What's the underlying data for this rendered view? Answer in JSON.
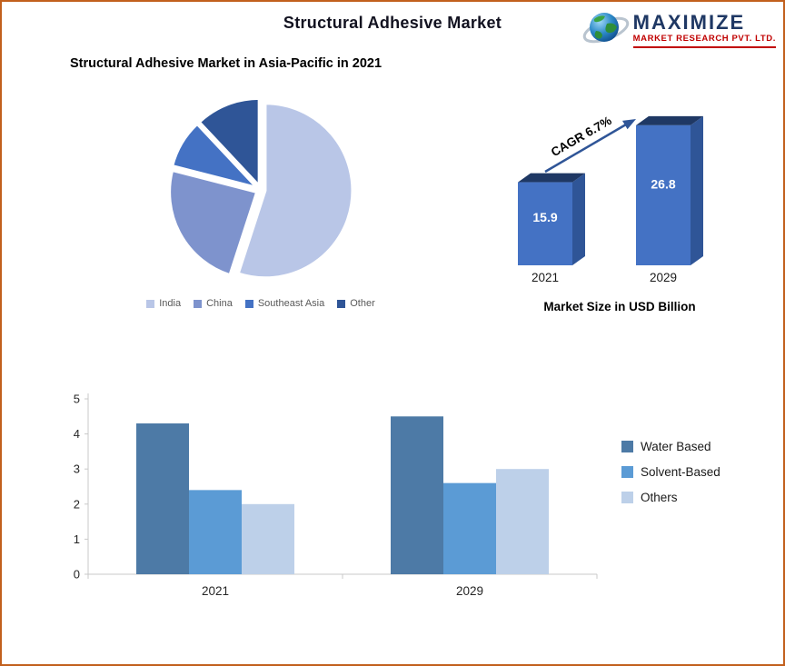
{
  "page": {
    "title": "Structural Adhesive Market",
    "subtitle": "Structural Adhesive Market in Asia-Pacific in 2021",
    "border_color": "#c2601d"
  },
  "logo": {
    "name": "MAXIMIZE",
    "tagline": "MARKET RESEARCH PVT. LTD.",
    "name_color": "#1f3864",
    "tagline_color": "#c00000",
    "icon": "globe-icon"
  },
  "chart_data": [
    {
      "type": "pie",
      "title": "Structural Adhesive Market in Asia-Pacific in 2021",
      "labels": [
        "India",
        "China",
        "Southeast Asia",
        "Other"
      ],
      "values": [
        55,
        24,
        9,
        12
      ],
      "colors": [
        "#b9c6e7",
        "#7e93cd",
        "#4472c4",
        "#2f5597"
      ],
      "legend_position": "bottom"
    },
    {
      "type": "bar",
      "style": "3d",
      "title": "Market Size in USD Billion",
      "categories": [
        "2021",
        "2029"
      ],
      "values": [
        15.9,
        26.8
      ],
      "annotation": "CAGR 6.7%",
      "colors": {
        "front": "#4472c4",
        "side": "#2f5597",
        "top": "#1f3864",
        "arrow": "#2f5597"
      }
    },
    {
      "type": "bar",
      "categories": [
        "2021",
        "2029"
      ],
      "series": [
        {
          "name": "Water Based",
          "values": [
            4.3,
            4.5
          ],
          "color": "#4d7aa6"
        },
        {
          "name": "Solvent-Based",
          "values": [
            2.4,
            2.6
          ],
          "color": "#5b9bd5"
        },
        {
          "name": "Others",
          "values": [
            2.0,
            3.0
          ],
          "color": "#bdd0e9"
        }
      ],
      "ylim": [
        0,
        5
      ],
      "yticks": [
        0,
        1,
        2,
        3,
        4,
        5
      ],
      "legend_position": "right",
      "grid": false
    }
  ]
}
